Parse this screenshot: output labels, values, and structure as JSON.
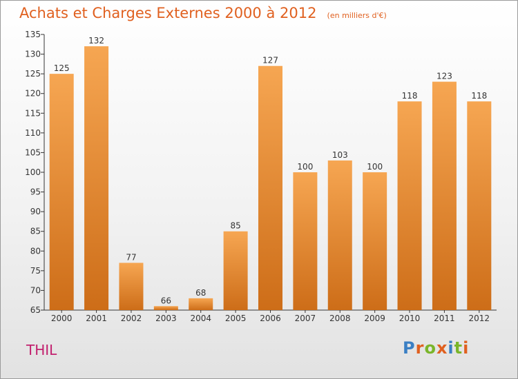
{
  "header": {
    "title": "Achats et Charges Externes 2000 à 2012",
    "subtitle": "(en milliers d'€)"
  },
  "footer": {
    "commune": "THIL",
    "logo_text": "Proxiti"
  },
  "colors": {
    "title": "#e0601f",
    "bar_top": "#f6a652",
    "bar_bottom": "#cd6d18",
    "commune": "#c2206e",
    "logo": [
      "#3a7fc4",
      "#e0601f",
      "#7ab52a",
      "#e0601f",
      "#3a7fc4",
      "#7ab52a",
      "#e0601f"
    ]
  },
  "chart_data": {
    "type": "bar",
    "title": "Achats et Charges Externes 2000 à 2012",
    "subtitle": "(en milliers d'€)",
    "categories": [
      "2000",
      "2001",
      "2002",
      "2003",
      "2004",
      "2005",
      "2006",
      "2007",
      "2008",
      "2009",
      "2010",
      "2011",
      "2012"
    ],
    "values": [
      125,
      132,
      77,
      66,
      68,
      85,
      127,
      100,
      103,
      100,
      118,
      123,
      118
    ],
    "ylim": [
      65,
      135
    ],
    "yticks": [
      65,
      70,
      75,
      80,
      85,
      90,
      95,
      100,
      105,
      110,
      115,
      120,
      125,
      130,
      135
    ],
    "grid": false,
    "legend": "none"
  }
}
